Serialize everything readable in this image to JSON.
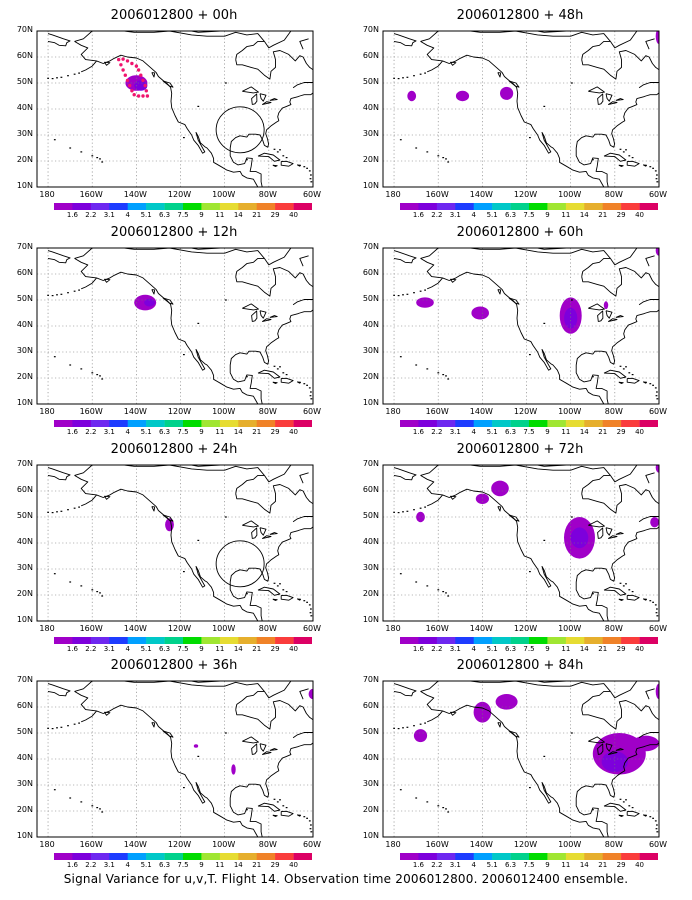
{
  "caption": "Signal Variance for u,v,T. Flight 14. Observation time 2006012800. 2006012400 ensemble.",
  "axes": {
    "lat_labels": [
      "70N",
      "60N",
      "50N",
      "40N",
      "30N",
      "20N",
      "10N"
    ],
    "lon_labels": [
      "180",
      "160W",
      "140W",
      "120W",
      "100W",
      "80W",
      "60W"
    ]
  },
  "colorbar": {
    "labels": [
      "1.6",
      "2.2",
      "3.1",
      "4",
      "5.1",
      "6.3",
      "7.5",
      "9",
      "11",
      "14",
      "21",
      "29",
      "40"
    ],
    "colors": [
      "#a000c8",
      "#7d00dc",
      "#6e28f0",
      "#1e3cff",
      "#00a0ff",
      "#00c8c8",
      "#00d28c",
      "#00dc00",
      "#a0e632",
      "#e6dc32",
      "#e6af2d",
      "#f08228",
      "#fa3c3c",
      "#dc0064"
    ]
  },
  "panels": [
    {
      "title": "2006012800 + 00h",
      "col": 0,
      "row": 0,
      "has_track": true
    },
    {
      "title": "2006012800 + 48h",
      "col": 1,
      "row": 0,
      "has_track": false
    },
    {
      "title": "2006012800 + 12h",
      "col": 0,
      "row": 1,
      "has_track": false
    },
    {
      "title": "2006012800 + 60h",
      "col": 1,
      "row": 1,
      "has_track": false
    },
    {
      "title": "2006012800 + 24h",
      "col": 0,
      "row": 2,
      "has_track": false
    },
    {
      "title": "2006012800 + 72h",
      "col": 1,
      "row": 2,
      "has_track": false
    },
    {
      "title": "2006012800 + 36h",
      "col": 0,
      "row": 3,
      "has_track": false
    },
    {
      "title": "2006012800 + 84h",
      "col": 1,
      "row": 3,
      "has_track": false
    }
  ],
  "map_blobs": [
    {
      "panel": 0,
      "shapes": [
        {
          "lon": -140,
          "lat": 50,
          "rx": 5,
          "ry": 3,
          "color": "#a000c8"
        },
        {
          "lon": -138,
          "lat": 49,
          "rx": 3,
          "ry": 2,
          "color": "#7d00dc"
        }
      ]
    },
    {
      "panel": 1,
      "shapes": [
        {
          "lon": -172,
          "lat": 45,
          "rx": 2,
          "ry": 2,
          "color": "#a000c8"
        },
        {
          "lon": -149,
          "lat": 45,
          "rx": 3,
          "ry": 2,
          "color": "#a000c8"
        },
        {
          "lon": -129,
          "lat": 46,
          "rx": 3,
          "ry": 2.5,
          "color": "#a000c8"
        },
        {
          "lon": -60,
          "lat": 68,
          "rx": 1.5,
          "ry": 3,
          "color": "#a000c8"
        }
      ]
    },
    {
      "panel": 2,
      "shapes": [
        {
          "lon": -136,
          "lat": 49,
          "rx": 5,
          "ry": 3,
          "color": "#a000c8"
        },
        {
          "lon": -134,
          "lat": 49,
          "rx": 2.5,
          "ry": 1.5,
          "color": "#7d00dc"
        }
      ]
    },
    {
      "panel": 3,
      "shapes": [
        {
          "lon": -166,
          "lat": 49,
          "rx": 4,
          "ry": 2,
          "color": "#a000c8"
        },
        {
          "lon": -141,
          "lat": 45,
          "rx": 4,
          "ry": 2.5,
          "color": "#a000c8"
        },
        {
          "lon": -100,
          "lat": 44,
          "rx": 5,
          "ry": 7,
          "color": "#a000c8"
        },
        {
          "lon": -100,
          "lat": 43,
          "rx": 3,
          "ry": 4,
          "color": "#7d00dc"
        },
        {
          "lon": -84,
          "lat": 48,
          "rx": 1,
          "ry": 1.5,
          "color": "#a000c8"
        },
        {
          "lon": -60,
          "lat": 69,
          "rx": 1.5,
          "ry": 2,
          "color": "#a000c8"
        }
      ]
    },
    {
      "panel": 4,
      "shapes": [
        {
          "lon": -125,
          "lat": 47,
          "rx": 2,
          "ry": 2.5,
          "color": "#a000c8"
        }
      ]
    },
    {
      "panel": 5,
      "shapes": [
        {
          "lon": -168,
          "lat": 50,
          "rx": 2,
          "ry": 2,
          "color": "#a000c8"
        },
        {
          "lon": -140,
          "lat": 57,
          "rx": 3,
          "ry": 2,
          "color": "#a000c8"
        },
        {
          "lon": -132,
          "lat": 61,
          "rx": 4,
          "ry": 3,
          "color": "#a000c8"
        },
        {
          "lon": -96,
          "lat": 42,
          "rx": 7,
          "ry": 8,
          "color": "#a000c8"
        },
        {
          "lon": -96,
          "lat": 42,
          "rx": 4,
          "ry": 4,
          "color": "#7d00dc"
        },
        {
          "lon": -62,
          "lat": 48,
          "rx": 2,
          "ry": 2,
          "color": "#a000c8"
        },
        {
          "lon": -60,
          "lat": 69,
          "rx": 1.5,
          "ry": 2,
          "color": "#a000c8"
        }
      ]
    },
    {
      "panel": 6,
      "shapes": [
        {
          "lon": -113,
          "lat": 45,
          "rx": 1,
          "ry": 0.7,
          "color": "#a000c8"
        },
        {
          "lon": -96,
          "lat": 36,
          "rx": 1,
          "ry": 2,
          "color": "#a000c8"
        },
        {
          "lon": -60,
          "lat": 65,
          "rx": 2,
          "ry": 2,
          "color": "#a000c8"
        }
      ]
    },
    {
      "panel": 7,
      "shapes": [
        {
          "lon": -168,
          "lat": 49,
          "rx": 3,
          "ry": 2.5,
          "color": "#a000c8"
        },
        {
          "lon": -140,
          "lat": 58,
          "rx": 4,
          "ry": 4,
          "color": "#a000c8"
        },
        {
          "lon": -129,
          "lat": 62,
          "rx": 5,
          "ry": 3,
          "color": "#a000c8"
        },
        {
          "lon": -78,
          "lat": 42,
          "rx": 12,
          "ry": 8,
          "color": "#a000c8"
        },
        {
          "lon": -80,
          "lat": 39,
          "rx": 6,
          "ry": 4,
          "color": "#7d00dc"
        },
        {
          "lon": -66,
          "lat": 46,
          "rx": 6,
          "ry": 3,
          "color": "#a000c8"
        },
        {
          "lon": -60,
          "lat": 66,
          "rx": 1.5,
          "ry": 3,
          "color": "#a000c8"
        }
      ]
    }
  ],
  "track_points": [
    {
      "lon": -148,
      "lat": 59
    },
    {
      "lon": -147,
      "lat": 57
    },
    {
      "lon": -146,
      "lat": 55
    },
    {
      "lon": -145,
      "lat": 53
    },
    {
      "lon": -144,
      "lat": 51
    },
    {
      "lon": -143,
      "lat": 49
    },
    {
      "lon": -142,
      "lat": 47
    },
    {
      "lon": -141,
      "lat": 45.5
    },
    {
      "lon": -139,
      "lat": 45
    },
    {
      "lon": -137,
      "lat": 45
    },
    {
      "lon": -135,
      "lat": 45
    },
    {
      "lon": -135.5,
      "lat": 47
    },
    {
      "lon": -136,
      "lat": 49
    },
    {
      "lon": -137,
      "lat": 51
    },
    {
      "lon": -138,
      "lat": 53
    },
    {
      "lon": -139,
      "lat": 55
    },
    {
      "lon": -140,
      "lat": 56.5
    },
    {
      "lon": -142,
      "lat": 57.5
    },
    {
      "lon": -144,
      "lat": 58.5
    },
    {
      "lon": -146,
      "lat": 59.2
    }
  ]
}
